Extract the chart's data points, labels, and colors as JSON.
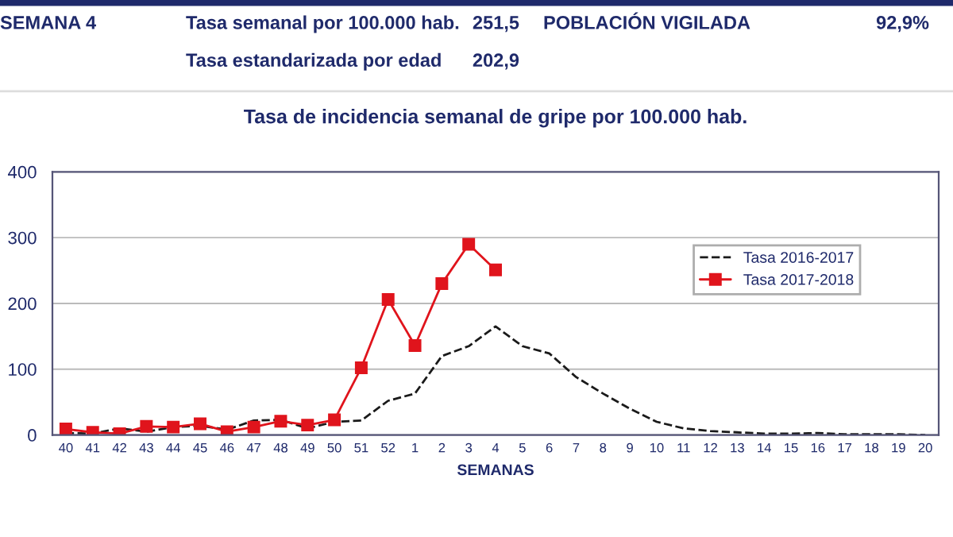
{
  "chart_data": {
    "type": "line",
    "title": "Tasa de incidencia semanal de gripe por 100.000 hab.",
    "xlabel": "SEMANAS",
    "annotations": [
      "SEMANA 4",
      "Tasa semanal por 100.000 hab.",
      "251,5",
      "Tasa estandarizada por edad",
      "202,9",
      "POBLACIÓN VIGILADA",
      "92,9%"
    ],
    "categories": [
      "40",
      "41",
      "42",
      "43",
      "44",
      "45",
      "46",
      "47",
      "48",
      "49",
      "50",
      "51",
      "52",
      "1",
      "2",
      "3",
      "4",
      "5",
      "6",
      "7",
      "8",
      "9",
      "10",
      "11",
      "12",
      "13",
      "14",
      "15",
      "16",
      "17",
      "18",
      "19",
      "20"
    ],
    "series": [
      {
        "name": "Tasa 2016-2017",
        "color": "#1a1a1a",
        "marker": "none",
        "line_style": "dashed",
        "values": [
          3,
          2,
          10,
          5,
          12,
          14,
          8,
          22,
          23,
          10,
          20,
          22,
          52,
          63,
          120,
          135,
          165,
          135,
          124,
          88,
          63,
          40,
          20,
          10,
          6,
          4,
          2,
          2,
          3,
          1,
          1,
          1,
          0
        ]
      },
      {
        "name": "Tasa 2017-2018",
        "color": "#e0141c",
        "marker": "square",
        "line_style": "solid",
        "values": [
          9,
          4,
          2,
          13,
          12,
          17,
          5,
          12,
          21,
          15,
          23,
          102,
          206,
          136,
          230,
          290,
          251,
          null,
          null,
          null,
          null,
          null,
          null,
          null,
          null,
          null,
          null,
          null,
          null,
          null,
          null,
          null,
          null
        ]
      }
    ],
    "ylim": [
      0,
      400
    ],
    "yticks": [
      0,
      100,
      200,
      300,
      400
    ],
    "grid": "y",
    "legend": "top right"
  }
}
